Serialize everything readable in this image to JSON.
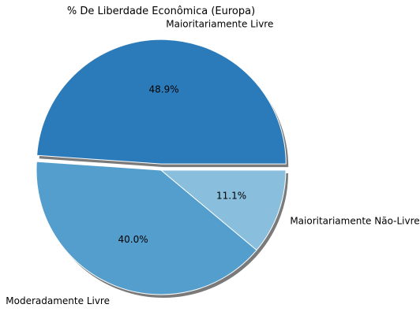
{
  "chart_data": {
    "type": "pie",
    "title": "% De Liberdade Econômica (Europa)",
    "slices": [
      {
        "label": "Maioritariamente Livre",
        "value": 48.9,
        "pct_label": "48.9%",
        "color": "#2b7bba",
        "exploded": true
      },
      {
        "label": "Moderadamente Livre",
        "value": 40.0,
        "pct_label": "40.0%",
        "color": "#539ecd",
        "exploded": false
      },
      {
        "label": "Maioritariamente Não-Livre",
        "value": 11.1,
        "pct_label": "11.1%",
        "color": "#89bedc",
        "exploded": false
      }
    ],
    "shadow": true,
    "legend": "none"
  }
}
